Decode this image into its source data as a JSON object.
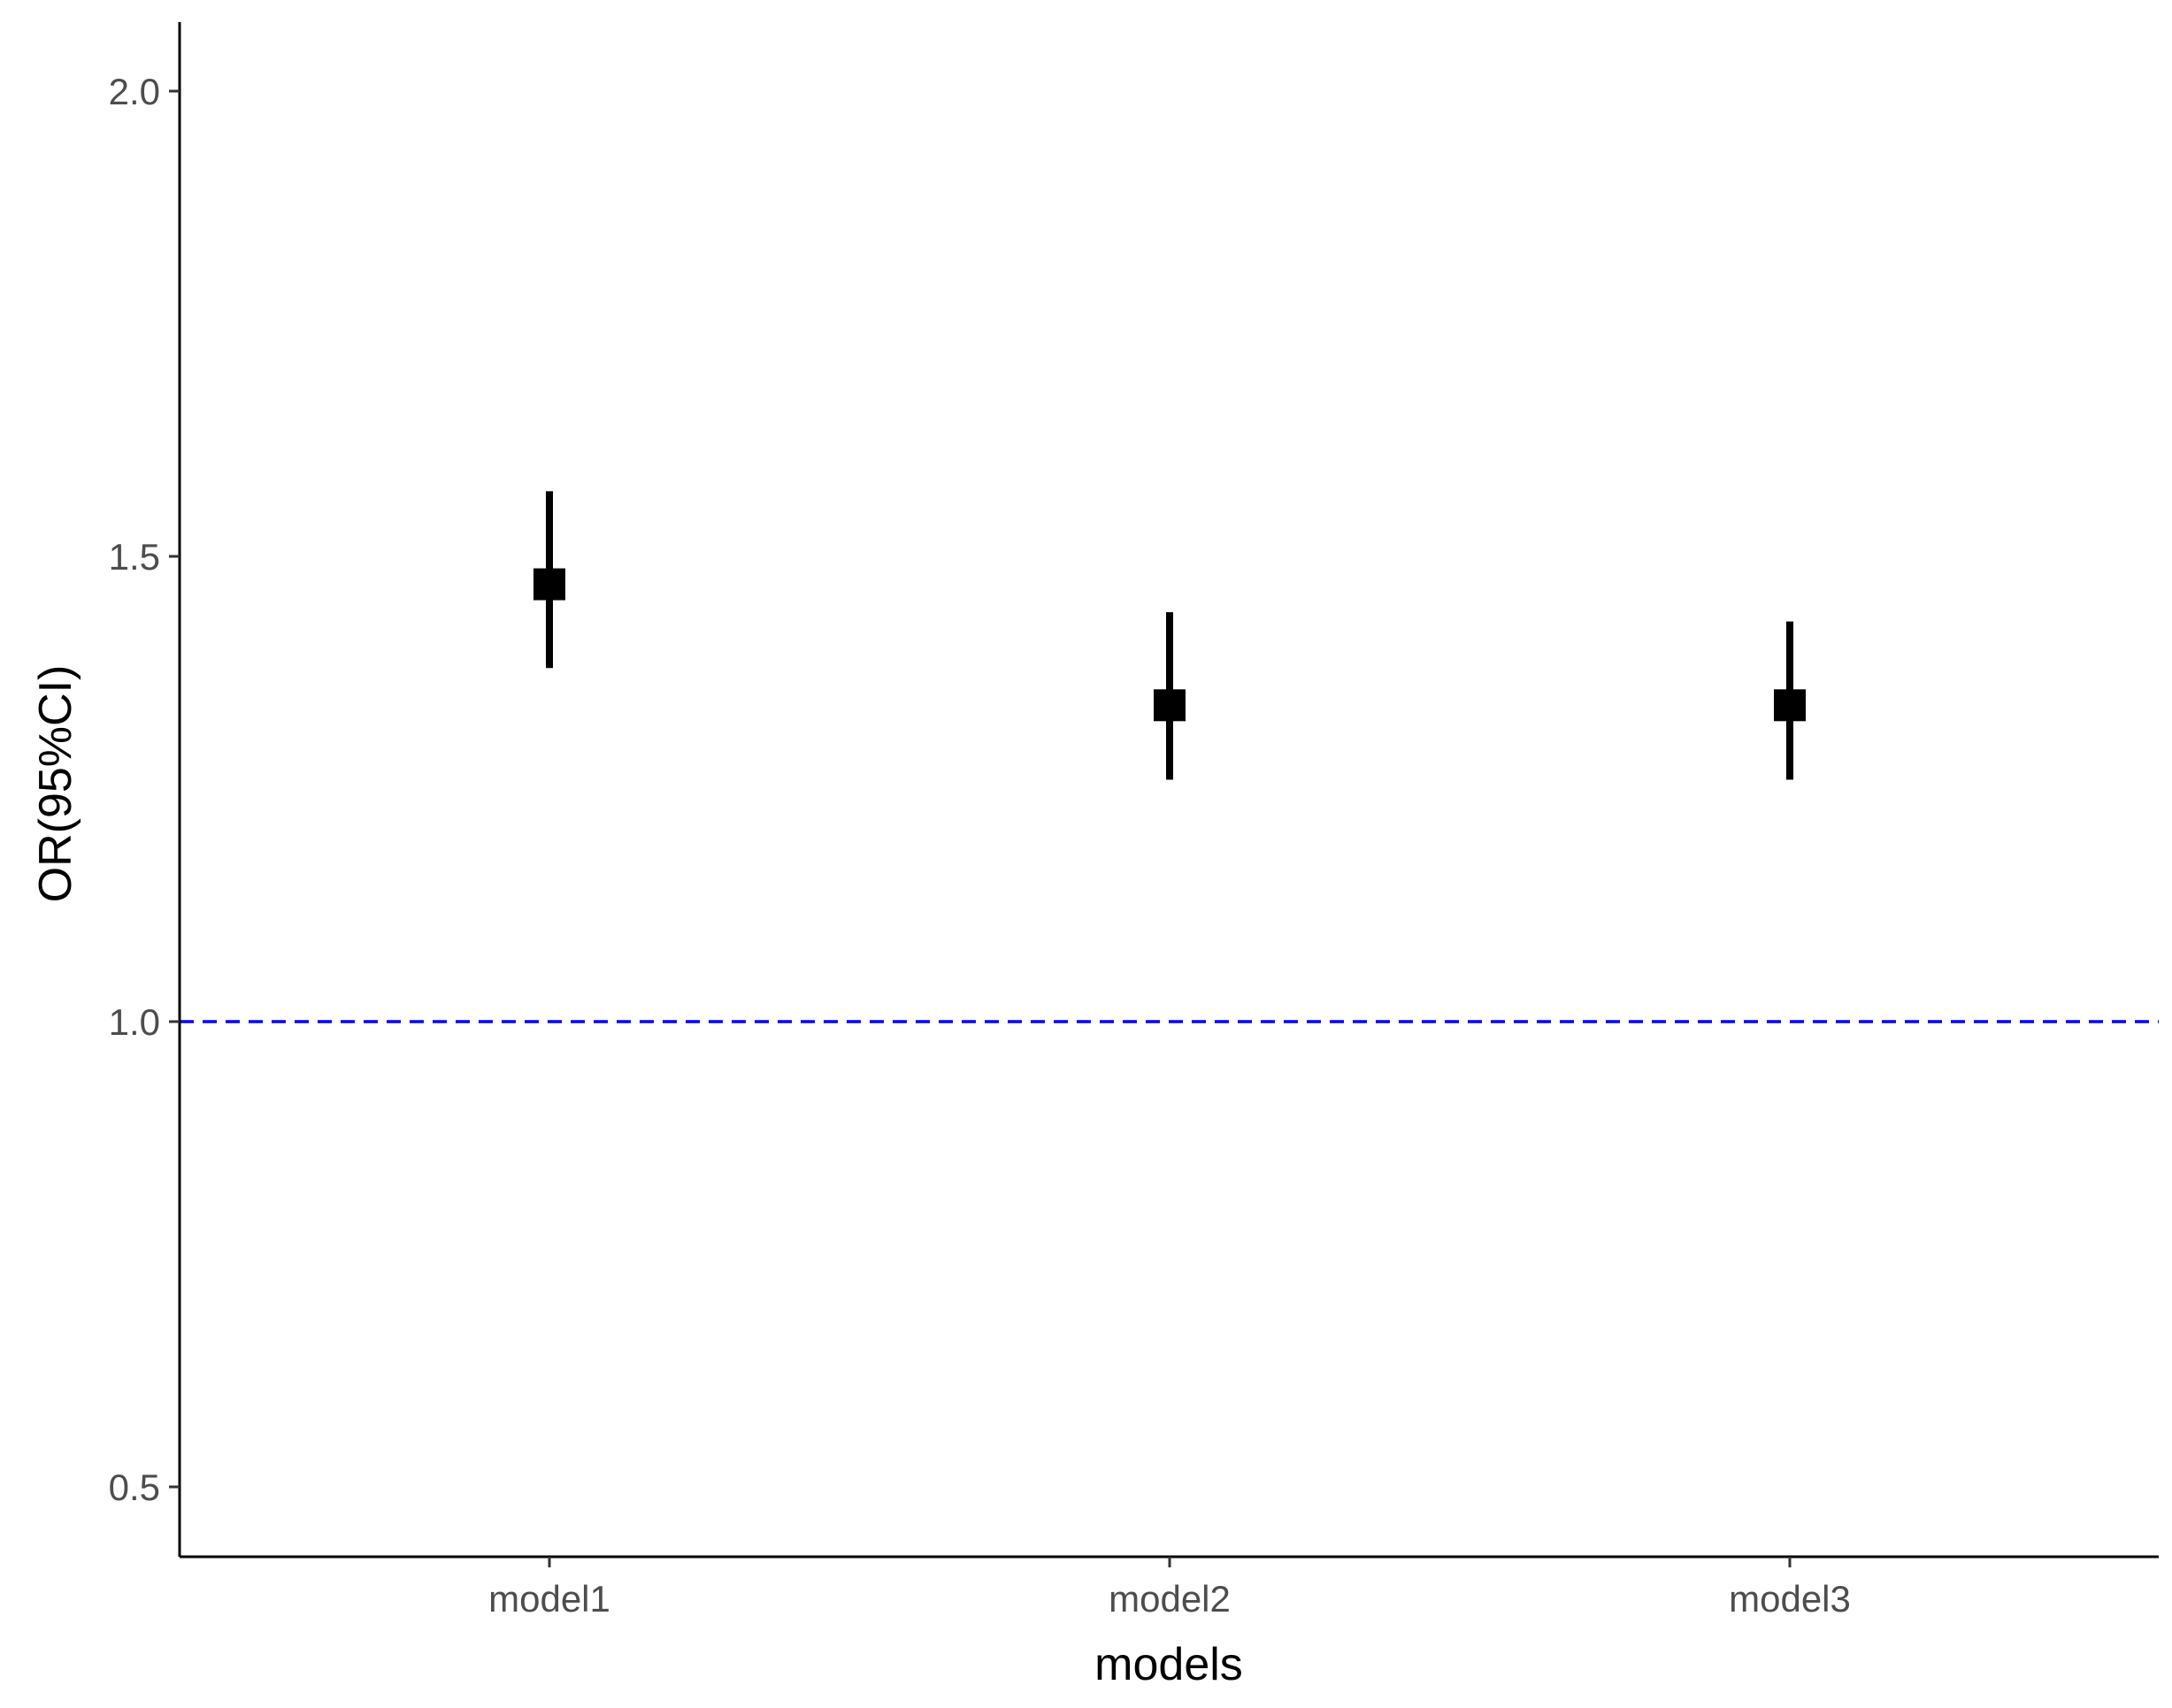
{
  "chart_data": {
    "type": "scatter",
    "title": "",
    "xlabel": "models",
    "ylabel": "OR(95%CI)",
    "categories": [
      "model1",
      "model2",
      "model3"
    ],
    "points": [
      {
        "x": "model1",
        "or": 1.47,
        "lower": 1.38,
        "upper": 1.57
      },
      {
        "x": "model2",
        "or": 1.34,
        "lower": 1.26,
        "upper": 1.44
      },
      {
        "x": "model3",
        "or": 1.34,
        "lower": 1.26,
        "upper": 1.43
      }
    ],
    "y_ticks": [
      {
        "value": 0.5,
        "label": "0.5"
      },
      {
        "value": 1.0,
        "label": "1.0"
      },
      {
        "value": 1.5,
        "label": "1.5"
      },
      {
        "value": 2.0,
        "label": "2.0"
      }
    ],
    "ylim": [
      0.45,
      2.08
    ],
    "reference_line": {
      "value": 1.0,
      "style": "dashed",
      "color": "#0000ff"
    },
    "grid": false,
    "legend": "none",
    "colors": {
      "points": "#000000",
      "axis": "#000000",
      "tick_label": "#4d4d4d"
    }
  }
}
